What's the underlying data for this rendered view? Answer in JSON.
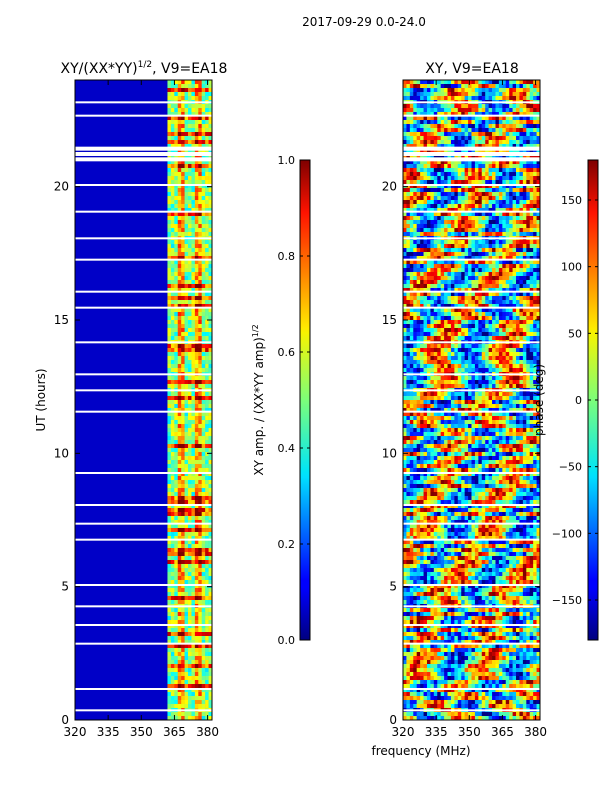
{
  "figure_title": "2017-09-29 0.0-24.0",
  "chart_data": [
    {
      "type": "heatmap",
      "title": "XY/(XX*YY)^1/2, V9=EA18",
      "title_main": "XY/(XX*YY)",
      "title_sup": "1/2",
      "title_tail": ", V9=EA18",
      "xlabel": "",
      "ylabel": "UT (hours)",
      "xlim": [
        320,
        382
      ],
      "ylim": [
        0,
        24
      ],
      "x_ticks": [
        "320",
        "335",
        "350",
        "365",
        "380"
      ],
      "x_tick_values": [
        320,
        335,
        350,
        365,
        380
      ],
      "y_ticks": [
        "0",
        "5",
        "10",
        "15",
        "20"
      ],
      "y_tick_values": [
        0,
        5,
        10,
        15,
        20
      ],
      "colorbar": {
        "label": "XY amp. / (XX*YY amp)^1/2",
        "label_main": "XY amp. / (XX*YY amp)",
        "label_sup": "1/2",
        "range": [
          0.0,
          1.0
        ],
        "ticks": [
          "0.0",
          "0.2",
          "0.4",
          "0.6",
          "0.8",
          "1.0"
        ],
        "tick_values": [
          0.0,
          0.2,
          0.4,
          0.6,
          0.8,
          1.0
        ],
        "colormap": "jet"
      }
    },
    {
      "type": "heatmap",
      "title": "XY, V9=EA18",
      "xlabel": "frequency (MHz)",
      "ylabel": "",
      "xlim": [
        320,
        382
      ],
      "ylim": [
        0,
        24
      ],
      "x_ticks": [
        "320",
        "335",
        "350",
        "365",
        "380"
      ],
      "x_tick_values": [
        320,
        335,
        350,
        365,
        380
      ],
      "y_ticks": [
        "0",
        "5",
        "10",
        "15",
        "20"
      ],
      "y_tick_values": [
        0,
        5,
        10,
        15,
        20
      ],
      "colorbar": {
        "label": "phase (deg)",
        "range": [
          -180,
          180
        ],
        "ticks": [
          "−150",
          "−100",
          "−50",
          "0",
          "50",
          "100",
          "150"
        ],
        "tick_values": [
          -150,
          -100,
          -50,
          0,
          50,
          100,
          150
        ],
        "colormap": "jet"
      }
    }
  ],
  "colors": {
    "background": "#ffffff",
    "axis": "#000000",
    "flag_gap": "#ffffff"
  }
}
